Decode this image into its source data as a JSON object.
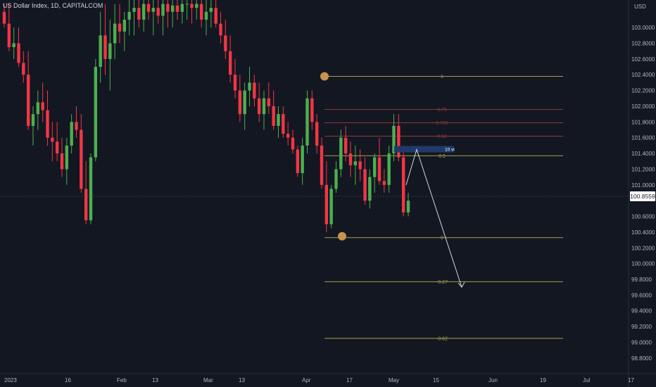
{
  "header": {
    "symbol_title": "US Dollar Index, 1D, CAPITALCOM",
    "currency": "USD"
  },
  "colors": {
    "background": "#131722",
    "up": "#4caf50",
    "down": "#f23645",
    "axis_text": "#b2b5be",
    "fib_yellow": "#a8a04a",
    "fib_red": "#8a3a3a",
    "marker": "#c8934a",
    "price_label_bg": "#ffffff",
    "position_box": "#1f3a6a"
  },
  "chart_data": {
    "type": "candlestick",
    "title": "US Dollar Index, 1D, CAPITALCOM",
    "y_axis": {
      "ticks": [
        "103.0000",
        "102.8000",
        "102.6000",
        "102.4000",
        "102.2000",
        "102.0000",
        "101.8000",
        "101.6000",
        "101.4000",
        "101.2000",
        "101.0000",
        "100.6000",
        "100.4000",
        "100.2000",
        "100.0000",
        "99.8000",
        "99.6000",
        "99.4000",
        "99.2000",
        "99.0000",
        "98.8000"
      ],
      "ylim": [
        98.7,
        103.35
      ]
    },
    "x_axis": {
      "ticks": [
        "2023",
        "16",
        "Feb",
        "13",
        "Mar",
        "13",
        "Apr",
        "17",
        "May",
        "15",
        "Jun",
        "19",
        "Jul",
        "17"
      ]
    },
    "current_price": "100.8559",
    "fibonacci": {
      "levels": [
        {
          "label": "1",
          "value": 102.38,
          "color": "yellow"
        },
        {
          "label": "0.79",
          "value": 101.96,
          "color": "red"
        },
        {
          "label": "0.705",
          "value": 101.79,
          "color": "red"
        },
        {
          "label": "0.62",
          "value": 101.62,
          "color": "red"
        },
        {
          "label": "0.5",
          "value": 101.37,
          "color": "yellow"
        },
        {
          "label": "0",
          "value": 100.33,
          "color": "yellow"
        },
        {
          "label": "-0.27",
          "value": 99.77,
          "color": "yellow"
        },
        {
          "label": "-0.62",
          "value": 99.05,
          "color": "yellow"
        }
      ],
      "anchors": [
        {
          "name": "swing-high",
          "value": 102.38
        },
        {
          "name": "swing-low",
          "value": 100.33
        }
      ]
    },
    "annotation": {
      "label": "10 vi",
      "projection": {
        "from": 101.45,
        "to": 99.7
      }
    },
    "candles": [
      [
        103.2,
        103.3,
        103.0,
        103.05
      ],
      [
        103.05,
        103.3,
        102.7,
        102.75
      ],
      [
        102.75,
        103.0,
        102.6,
        102.8
      ],
      [
        102.8,
        103.0,
        102.5,
        102.55
      ],
      [
        102.55,
        102.7,
        102.3,
        102.4
      ],
      [
        102.4,
        102.7,
        101.7,
        101.75
      ],
      [
        101.75,
        102.0,
        101.5,
        101.9
      ],
      [
        101.9,
        102.2,
        101.7,
        102.05
      ],
      [
        102.05,
        102.3,
        101.8,
        101.95
      ],
      [
        101.95,
        102.2,
        101.5,
        101.6
      ],
      [
        101.6,
        101.8,
        101.3,
        101.55
      ],
      [
        101.55,
        101.8,
        101.3,
        101.4
      ],
      [
        101.4,
        101.6,
        101.1,
        101.2
      ],
      [
        101.2,
        101.6,
        101.0,
        101.5
      ],
      [
        101.5,
        101.9,
        101.4,
        101.8
      ],
      [
        101.8,
        102.0,
        101.6,
        101.7
      ],
      [
        101.7,
        101.9,
        100.9,
        100.95
      ],
      [
        100.95,
        101.3,
        100.5,
        100.55
      ],
      [
        100.55,
        101.4,
        100.5,
        101.35
      ],
      [
        101.35,
        102.6,
        101.3,
        102.5
      ],
      [
        102.5,
        103.2,
        102.3,
        102.9
      ],
      [
        102.9,
        103.3,
        102.4,
        102.6
      ],
      [
        102.6,
        103.1,
        102.2,
        102.8
      ],
      [
        102.8,
        103.3,
        102.6,
        103.05
      ],
      [
        103.05,
        103.3,
        102.8,
        102.95
      ],
      [
        102.95,
        103.2,
        102.7,
        103.1
      ],
      [
        103.1,
        103.35,
        102.9,
        103.2
      ],
      [
        103.2,
        103.35,
        102.9,
        103.25
      ],
      [
        103.25,
        103.35,
        103.0,
        103.1
      ],
      [
        103.1,
        103.35,
        102.95,
        103.3
      ],
      [
        103.3,
        103.35,
        103.1,
        103.2
      ],
      [
        103.2,
        103.35,
        102.9,
        103.25
      ],
      [
        103.25,
        103.35,
        103.05,
        103.15
      ],
      [
        103.15,
        103.35,
        102.9,
        103.3
      ],
      [
        103.3,
        103.35,
        103.0,
        103.2
      ],
      [
        103.2,
        103.35,
        103.0,
        103.28
      ],
      [
        103.28,
        103.35,
        103.1,
        103.2
      ],
      [
        103.2,
        103.35,
        103.05,
        103.3
      ],
      [
        103.3,
        103.35,
        103.1,
        103.3
      ],
      [
        103.3,
        103.35,
        103.05,
        103.25
      ],
      [
        103.25,
        103.35,
        103.1,
        103.3
      ],
      [
        103.3,
        103.35,
        103.0,
        103.1
      ],
      [
        103.1,
        103.35,
        102.9,
        103.2
      ],
      [
        103.2,
        103.35,
        103.0,
        103.25
      ],
      [
        103.25,
        103.35,
        103.0,
        103.05
      ],
      [
        103.05,
        103.2,
        102.8,
        102.9
      ],
      [
        102.9,
        103.1,
        102.6,
        102.7
      ],
      [
        102.7,
        102.9,
        102.3,
        102.4
      ],
      [
        102.4,
        102.6,
        102.1,
        102.2
      ],
      [
        102.2,
        102.4,
        101.8,
        101.9
      ],
      [
        101.9,
        102.3,
        101.7,
        102.2
      ],
      [
        102.2,
        102.5,
        102.0,
        102.3
      ],
      [
        102.3,
        102.4,
        102.0,
        102.1
      ],
      [
        102.1,
        102.3,
        101.8,
        101.9
      ],
      [
        101.9,
        102.2,
        101.7,
        102.1
      ],
      [
        102.1,
        102.3,
        101.9,
        102.0
      ],
      [
        102.0,
        102.2,
        101.7,
        101.75
      ],
      [
        101.75,
        102.0,
        101.6,
        101.9
      ],
      [
        101.9,
        102.0,
        101.6,
        101.65
      ],
      [
        101.65,
        101.8,
        101.5,
        101.6
      ],
      [
        101.6,
        101.7,
        101.4,
        101.45
      ],
      [
        101.45,
        101.5,
        101.1,
        101.15
      ],
      [
        101.15,
        101.6,
        101.0,
        101.5
      ],
      [
        101.5,
        102.2,
        101.4,
        102.1
      ],
      [
        102.1,
        102.2,
        101.7,
        101.8
      ],
      [
        101.8,
        101.9,
        101.4,
        101.5
      ],
      [
        101.5,
        101.6,
        100.95,
        101.0
      ],
      [
        101.0,
        101.3,
        100.4,
        100.5
      ],
      [
        100.5,
        101.0,
        100.45,
        100.95
      ],
      [
        100.95,
        101.3,
        100.9,
        101.2
      ],
      [
        101.2,
        101.7,
        101.1,
        101.6
      ],
      [
        101.6,
        101.75,
        101.3,
        101.4
      ],
      [
        101.4,
        101.55,
        101.1,
        101.25
      ],
      [
        101.25,
        101.5,
        101.0,
        101.3
      ],
      [
        101.3,
        101.45,
        101.05,
        101.2
      ],
      [
        101.2,
        101.35,
        100.75,
        100.8
      ],
      [
        100.8,
        101.2,
        100.7,
        101.1
      ],
      [
        101.1,
        101.4,
        100.9,
        101.35
      ],
      [
        101.35,
        101.6,
        101.0,
        101.05
      ],
      [
        101.05,
        101.2,
        100.9,
        101.0
      ],
      [
        101.0,
        101.5,
        100.9,
        101.4
      ],
      [
        101.4,
        101.9,
        101.3,
        101.75
      ],
      [
        101.75,
        101.9,
        101.3,
        101.35
      ],
      [
        101.35,
        101.5,
        100.6,
        100.65
      ],
      [
        100.65,
        100.9,
        100.6,
        100.8
      ]
    ]
  }
}
